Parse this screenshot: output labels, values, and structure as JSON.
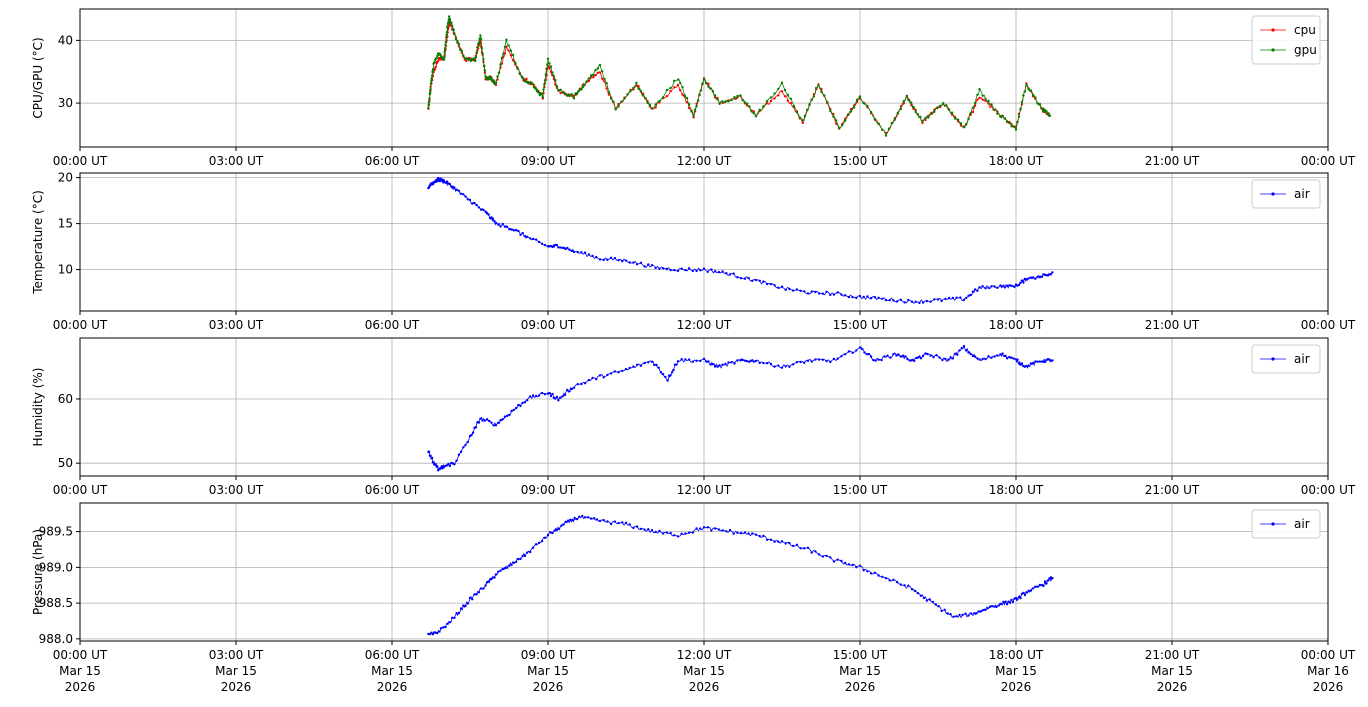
{
  "chart_data": [
    {
      "type": "line",
      "ylabel": "CPU/GPU (°C)",
      "xlim_hours": [
        0,
        24
      ],
      "ylim": [
        23.0,
        45.0
      ],
      "yticks": [
        30,
        40
      ],
      "ytick_labels": [
        "30",
        "40"
      ],
      "xtick_labels": [
        "00:00 UT",
        "03:00 UT",
        "06:00 UT",
        "09:00 UT",
        "12:00 UT",
        "15:00 UT",
        "18:00 UT",
        "21:00 UT",
        "00:00 UT"
      ],
      "grid": true,
      "legend": "top-right",
      "series": [
        {
          "name": "cpu",
          "color": "#ff0000",
          "x": [
            6.7,
            6.75,
            6.8,
            6.9,
            7.0,
            7.05,
            7.1,
            7.2,
            7.4,
            7.6,
            7.7,
            7.8,
            7.9,
            8.0,
            8.2,
            8.5,
            8.7,
            8.9,
            9.0,
            9.2,
            9.5,
            9.7,
            10.0,
            10.3,
            10.7,
            11.0,
            11.5,
            11.8,
            12.0,
            12.3,
            12.7,
            13.0,
            13.5,
            13.9,
            14.2,
            14.6,
            15.0,
            15.5,
            15.9,
            16.2,
            16.6,
            17.0,
            17.3,
            17.7,
            18.0,
            18.2,
            18.5,
            18.65
          ],
          "y": [
            29,
            33,
            35,
            37,
            37,
            40,
            43,
            41,
            37,
            37,
            40,
            34,
            34,
            33,
            39,
            34,
            33,
            31,
            36,
            32,
            31,
            33,
            35,
            29,
            33,
            29,
            33,
            28,
            34,
            30,
            31,
            28,
            32,
            27,
            33,
            26,
            31,
            25,
            31,
            27,
            30,
            26,
            31,
            28,
            26,
            33,
            29,
            28
          ]
        },
        {
          "name": "gpu",
          "color": "#008000",
          "x": [
            6.7,
            6.75,
            6.8,
            6.9,
            7.0,
            7.05,
            7.1,
            7.2,
            7.4,
            7.6,
            7.7,
            7.8,
            7.9,
            8.0,
            8.2,
            8.5,
            8.7,
            8.9,
            9.0,
            9.2,
            9.5,
            9.7,
            10.0,
            10.3,
            10.7,
            11.0,
            11.5,
            11.8,
            12.0,
            12.3,
            12.7,
            13.0,
            13.5,
            13.9,
            14.2,
            14.6,
            15.0,
            15.5,
            15.9,
            16.2,
            16.6,
            17.0,
            17.3,
            17.7,
            18.0,
            18.2,
            18.5,
            18.65
          ],
          "y": [
            29,
            33,
            36,
            38,
            37,
            41,
            44,
            41,
            37,
            37,
            41,
            34,
            34,
            33,
            40,
            34,
            33,
            31,
            37,
            32,
            31,
            33,
            36,
            29,
            33,
            29,
            34,
            28,
            34,
            30,
            31,
            28,
            33,
            27,
            33,
            26,
            31,
            25,
            31,
            27,
            30,
            26,
            32,
            28,
            26,
            33,
            29,
            28
          ]
        }
      ]
    },
    {
      "type": "line",
      "ylabel": "Temperature (°C)",
      "xlim_hours": [
        0,
        24
      ],
      "ylim": [
        5.5,
        20.5
      ],
      "yticks": [
        10,
        15,
        20
      ],
      "ytick_labels": [
        "10",
        "15",
        "20"
      ],
      "xtick_labels": [
        "00:00 UT",
        "03:00 UT",
        "06:00 UT",
        "09:00 UT",
        "12:00 UT",
        "15:00 UT",
        "18:00 UT",
        "21:00 UT",
        "00:00 UT"
      ],
      "grid": true,
      "legend": "top-right",
      "series": [
        {
          "name": "air",
          "color": "#0000ff",
          "x": [
            6.7,
            6.8,
            6.9,
            7.0,
            7.2,
            7.5,
            7.8,
            8.0,
            8.3,
            8.6,
            9.0,
            9.2,
            9.5,
            10.0,
            10.5,
            11.0,
            11.5,
            12.0,
            12.5,
            13.0,
            13.5,
            14.0,
            14.5,
            15.0,
            15.5,
            16.0,
            16.5,
            17.0,
            17.3,
            17.7,
            18.0,
            18.2,
            18.5,
            18.7
          ],
          "y": [
            19,
            19.5,
            19.8,
            19.6,
            18.8,
            17.5,
            16.2,
            15.0,
            14.5,
            13.5,
            12.5,
            12.6,
            12.0,
            11.2,
            11.0,
            10.3,
            10.0,
            10.0,
            9.5,
            8.8,
            8.0,
            7.5,
            7.4,
            7.0,
            6.8,
            6.5,
            6.7,
            6.8,
            8.0,
            8.2,
            8.2,
            9.0,
            9.3,
            9.7
          ]
        }
      ]
    },
    {
      "type": "line",
      "ylabel": "Humidity (%)",
      "xlim_hours": [
        0,
        24
      ],
      "ylim": [
        48.0,
        69.5
      ],
      "yticks": [
        50,
        60
      ],
      "ytick_labels": [
        "50",
        "60"
      ],
      "xtick_labels": [
        "00:00 UT",
        "03:00 UT",
        "06:00 UT",
        "09:00 UT",
        "12:00 UT",
        "15:00 UT",
        "18:00 UT",
        "21:00 UT",
        "00:00 UT"
      ],
      "grid": true,
      "legend": "top-right",
      "series": [
        {
          "name": "air",
          "color": "#0000ff",
          "x": [
            6.7,
            6.8,
            6.9,
            7.0,
            7.2,
            7.5,
            7.7,
            8.0,
            8.3,
            8.6,
            9.0,
            9.2,
            9.5,
            10.0,
            10.5,
            11.0,
            11.3,
            11.5,
            12.0,
            12.3,
            12.7,
            13.0,
            13.5,
            14.0,
            14.5,
            15.0,
            15.3,
            15.7,
            16.0,
            16.3,
            16.7,
            17.0,
            17.3,
            17.7,
            18.0,
            18.2,
            18.5,
            18.7
          ],
          "y": [
            52,
            50,
            49,
            49.5,
            50,
            54,
            57,
            56,
            58,
            60,
            61,
            60,
            62,
            63.5,
            64.5,
            66,
            63,
            66,
            66,
            65,
            66,
            66,
            65,
            66,
            66,
            68,
            66,
            67,
            66,
            67,
            66,
            68,
            66,
            67,
            66,
            65,
            66,
            66
          ]
        }
      ]
    },
    {
      "type": "line",
      "ylabel": "Pressure (hPa)",
      "xlim_hours": [
        0,
        24
      ],
      "ylim": [
        987.97,
        989.9
      ],
      "yticks": [
        988.0,
        988.5,
        989.0,
        989.5
      ],
      "ytick_labels": [
        "988.0",
        "988.5",
        "989.0",
        "989.5"
      ],
      "xtick_labels": [
        "00:00 UT\nMar 15\n2026",
        "03:00 UT\nMar 15\n2026",
        "06:00 UT\nMar 15\n2026",
        "09:00 UT\nMar 15\n2026",
        "12:00 UT\nMar 15\n2026",
        "15:00 UT\nMar 15\n2026",
        "18:00 UT\nMar 15\n2026",
        "21:00 UT\nMar 15\n2026",
        "00:00 UT\nMar 16\n2026"
      ],
      "grid": true,
      "legend": "top-right",
      "series": [
        {
          "name": "air",
          "color": "#0000ff",
          "x": [
            6.7,
            6.9,
            7.2,
            7.5,
            7.8,
            8.0,
            8.3,
            8.6,
            9.0,
            9.3,
            9.6,
            10.0,
            10.5,
            11.0,
            11.5,
            12.0,
            12.5,
            13.0,
            13.5,
            14.0,
            14.5,
            15.0,
            15.5,
            16.0,
            16.4,
            16.8,
            17.2,
            17.5,
            17.8,
            18.0,
            18.2,
            18.5,
            18.7
          ],
          "y": [
            988.05,
            988.1,
            988.3,
            988.55,
            988.75,
            988.9,
            989.05,
            989.2,
            989.45,
            989.6,
            989.7,
            989.65,
            989.6,
            989.5,
            989.45,
            989.55,
            989.5,
            989.45,
            989.35,
            989.25,
            989.1,
            989.0,
            988.85,
            988.7,
            988.5,
            988.3,
            988.35,
            988.45,
            988.5,
            988.55,
            988.65,
            988.75,
            988.85
          ]
        }
      ]
    }
  ]
}
